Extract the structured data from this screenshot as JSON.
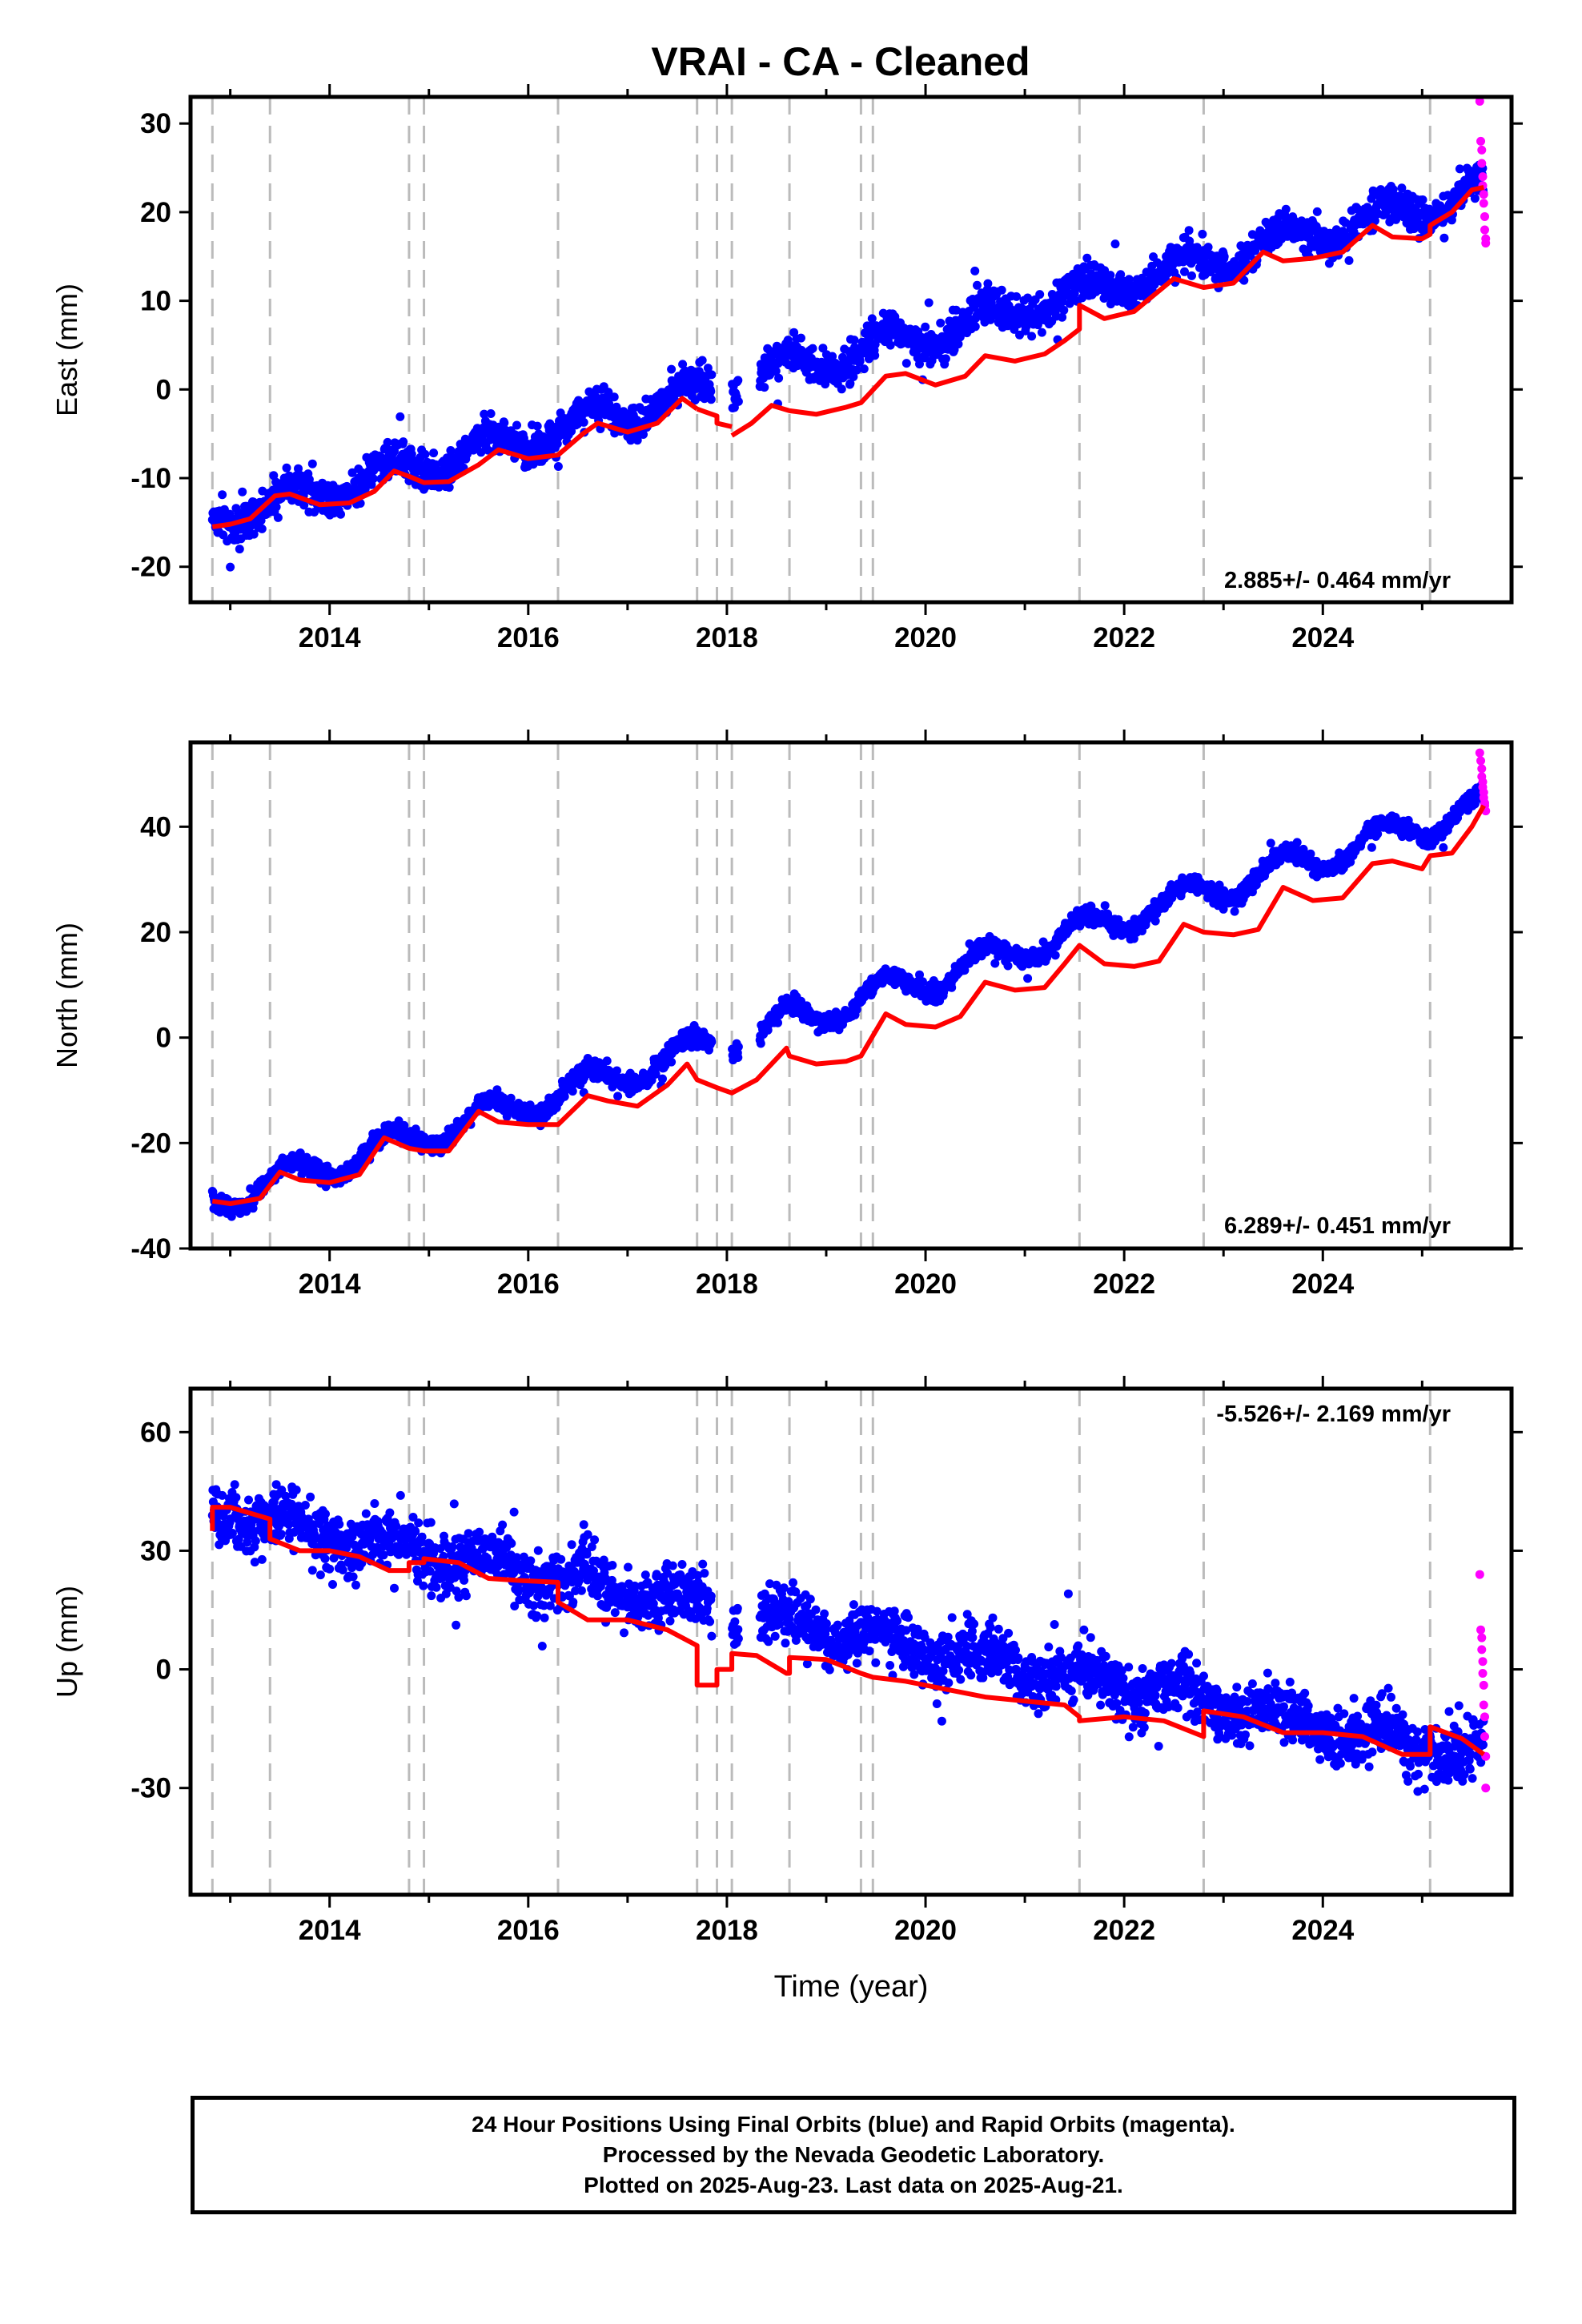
{
  "title": "VRAI  - CA - Cleaned",
  "colors": {
    "final": "#0000ff",
    "rapid": "#ff00ff",
    "model": "#ff0000",
    "event_lines": "#bbbbbb"
  },
  "xlabel": "Time (year)",
  "caption": [
    "24 Hour Positions Using Final Orbits (blue) and Rapid Orbits (magenta).",
    "Processed by the Nevada Geodetic Laboratory.",
    "Plotted on 2025-Aug-23. Last data on 2025-Aug-21."
  ],
  "chart_data": [
    {
      "type": "scatter",
      "panel": "east",
      "ylabel": "East (mm)",
      "rate_label": "2.885+/- 0.464 mm/yr",
      "rate_position": "bottom-right",
      "xlim": [
        2012.6,
        2025.9
      ],
      "ylim": [
        -24,
        33
      ],
      "yticks": [
        -20,
        -10,
        0,
        10,
        20,
        30
      ],
      "xticks": [
        2014,
        2016,
        2018,
        2020,
        2022,
        2024
      ],
      "event_lines": [
        2012.82,
        2013.4,
        2014.8,
        2014.95,
        2016.3,
        2017.7,
        2017.9,
        2018.05,
        2018.63,
        2019.35,
        2019.47,
        2021.55,
        2022.8,
        2025.08
      ],
      "trend": {
        "start": [
          2012.82,
          -14.5
        ],
        "end": [
          2025.62,
          22.5
        ],
        "amplitude": 1.6,
        "noise_sd": 2.2
      },
      "gaps": [
        [
          2017.85,
          2018.05
        ],
        [
          2018.12,
          2018.33
        ]
      ],
      "model_series": [
        {
          "x": [
            2012.82,
            2013.0,
            2013.2,
            2013.45,
            2013.6,
            2013.9,
            2014.2,
            2014.45,
            2014.65,
            2014.8,
            2014.95,
            2015.2,
            2015.5,
            2015.7,
            2016.0,
            2016.3,
            2016.55,
            2016.7,
            2017.0,
            2017.3,
            2017.55,
            2017.7
          ],
          "y": [
            -15.5,
            -15.2,
            -14.6,
            -12.0,
            -11.8,
            -13.0,
            -12.8,
            -11.5,
            -9.2,
            -9.8,
            -10.5,
            -10.4,
            -8.5,
            -6.8,
            -7.8,
            -7.4,
            -5.0,
            -3.8,
            -4.8,
            -3.8,
            -1.0,
            -2.2
          ]
        },
        {
          "x": [
            2017.7,
            2017.9,
            2017.9,
            2018.05
          ],
          "y": [
            -2.2,
            -3.0,
            -3.8,
            -4.2
          ]
        },
        {
          "x": [
            2018.05,
            2018.25,
            2018.45,
            2018.63,
            2018.9,
            2019.2,
            2019.35,
            2019.6,
            2019.8,
            2020.1,
            2020.4,
            2020.6,
            2020.9,
            2021.2,
            2021.4,
            2021.55,
            2021.55,
            2021.8,
            2022.1,
            2022.5,
            2022.8,
            2023.1,
            2023.4,
            2023.6,
            2023.9,
            2024.2,
            2024.5,
            2024.7,
            2025.0,
            2025.08,
            2025.08,
            2025.3,
            2025.5,
            2025.62
          ],
          "y": [
            -5.2,
            -3.8,
            -1.8,
            -2.4,
            -2.8,
            -2.0,
            -1.5,
            1.5,
            1.8,
            0.5,
            1.5,
            3.8,
            3.2,
            4.0,
            5.5,
            6.8,
            9.5,
            8.0,
            8.8,
            12.5,
            11.5,
            12.0,
            15.5,
            14.5,
            14.8,
            15.5,
            18.5,
            17.2,
            17.0,
            17.5,
            18.5,
            20.0,
            22.5,
            22.8
          ]
        }
      ],
      "rapid_points": {
        "x": [
          2025.58,
          2025.59,
          2025.6,
          2025.6,
          2025.61,
          2025.61,
          2025.62,
          2025.62,
          2025.63,
          2025.63,
          2025.64,
          2025.64
        ],
        "y": [
          32.5,
          28.0,
          27.0,
          25.5,
          24.0,
          23.0,
          22.0,
          21.0,
          19.5,
          18.0,
          17.0,
          16.5
        ]
      }
    },
    {
      "type": "scatter",
      "panel": "north",
      "ylabel": "North (mm)",
      "rate_label": "6.289+/- 0.451 mm/yr",
      "rate_position": "bottom-right",
      "xlim": [
        2012.6,
        2025.9
      ],
      "ylim": [
        -40,
        56
      ],
      "yticks": [
        -40,
        -20,
        0,
        20,
        40
      ],
      "xticks": [
        2014,
        2016,
        2018,
        2020,
        2022,
        2024
      ],
      "event_lines": [
        2012.82,
        2013.4,
        2014.8,
        2014.95,
        2016.3,
        2017.7,
        2017.9,
        2018.05,
        2018.63,
        2019.35,
        2019.47,
        2021.55,
        2022.8,
        2025.08
      ],
      "trend": {
        "start": [
          2012.82,
          -31.0
        ],
        "end": [
          2025.62,
          44.0
        ],
        "amplitude": 2.8,
        "noise_sd": 1.8
      },
      "gaps": [
        [
          2017.85,
          2018.05
        ],
        [
          2018.12,
          2018.33
        ]
      ],
      "model_series": [
        {
          "x": [
            2012.82,
            2013.0,
            2013.3,
            2013.5,
            2013.7,
            2014.0,
            2014.3,
            2014.55,
            2014.8,
            2014.95,
            2015.2,
            2015.5,
            2015.7,
            2016.0,
            2016.3,
            2016.6,
            2016.8,
            2017.1,
            2017.4,
            2017.6,
            2017.7,
            2017.9,
            2018.05,
            2018.3,
            2018.6,
            2018.63,
            2018.9,
            2019.2,
            2019.35,
            2019.6,
            2019.8,
            2020.1,
            2020.35,
            2020.6,
            2020.9,
            2021.2,
            2021.4,
            2021.55,
            2021.8,
            2022.1,
            2022.35,
            2022.6,
            2022.8,
            2023.1,
            2023.35,
            2023.6,
            2023.9,
            2024.2,
            2024.5,
            2024.7,
            2025.0,
            2025.08,
            2025.3,
            2025.5,
            2025.62
          ],
          "y": [
            -31.0,
            -31.5,
            -30.5,
            -25.5,
            -27.0,
            -27.5,
            -26.0,
            -19.0,
            -21.0,
            -21.5,
            -21.5,
            -14.0,
            -16.0,
            -16.5,
            -16.5,
            -11.0,
            -12.0,
            -13.0,
            -9.0,
            -5.0,
            -8.0,
            -9.5,
            -10.5,
            -8.0,
            -2.0,
            -3.5,
            -5.0,
            -4.5,
            -3.5,
            4.5,
            2.5,
            2.0,
            4.0,
            10.5,
            9.0,
            9.5,
            14.0,
            17.5,
            14.0,
            13.5,
            14.5,
            21.5,
            20.0,
            19.5,
            20.5,
            28.5,
            26.0,
            26.5,
            33.0,
            33.5,
            32.0,
            34.5,
            35.0,
            40.0,
            44.0
          ]
        }
      ],
      "rapid_points": {
        "x": [
          2025.58,
          2025.59,
          2025.6,
          2025.6,
          2025.61,
          2025.61,
          2025.62,
          2025.62,
          2025.63,
          2025.63,
          2025.64
        ],
        "y": [
          54.0,
          52.5,
          51.0,
          49.5,
          48.5,
          47.5,
          46.5,
          45.5,
          44.5,
          44.0,
          43.0
        ]
      }
    },
    {
      "type": "scatter",
      "panel": "up",
      "ylabel": "Up (mm)",
      "rate_label": "-5.526+/- 2.169 mm/yr",
      "rate_position": "top-right",
      "xlim": [
        2012.6,
        2025.9
      ],
      "ylim": [
        -57,
        71
      ],
      "yticks": [
        -30,
        0,
        30,
        60
      ],
      "xticks": [
        2014,
        2016,
        2018,
        2020,
        2022,
        2024
      ],
      "event_lines": [
        2012.82,
        2013.4,
        2014.8,
        2014.95,
        2016.3,
        2017.7,
        2017.9,
        2018.05,
        2018.63,
        2019.35,
        2019.47,
        2021.55,
        2022.8,
        2025.08
      ],
      "trend": {
        "start": [
          2012.82,
          40.0
        ],
        "end": [
          2025.62,
          -22.0
        ],
        "amplitude": 3.0,
        "noise_sd": 8.0
      },
      "gaps": [
        [
          2017.85,
          2018.05
        ],
        [
          2018.12,
          2018.33
        ]
      ],
      "model_series": [
        {
          "x": [
            2012.82,
            2012.82,
            2013.0,
            2013.4,
            2013.4,
            2013.7,
            2014.0,
            2014.3,
            2014.6,
            2014.8,
            2014.8,
            2014.95,
            2014.95,
            2015.3,
            2015.6,
            2015.9,
            2016.3,
            2016.3,
            2016.6,
            2017.0,
            2017.4,
            2017.7,
            2017.7,
            2017.9,
            2017.9,
            2018.05,
            2018.05,
            2018.3,
            2018.6,
            2018.63,
            2018.63,
            2019.0,
            2019.35,
            2019.47,
            2019.8,
            2020.2,
            2020.6,
            2021.0,
            2021.4,
            2021.55,
            2021.55,
            2022.0,
            2022.4,
            2022.8,
            2022.8,
            2023.2,
            2023.6,
            2024.0,
            2024.4,
            2024.8,
            2025.08,
            2025.08,
            2025.4,
            2025.62
          ],
          "y": [
            35.0,
            41.0,
            41.0,
            38.0,
            33.0,
            30.0,
            30.0,
            28.5,
            25.0,
            25.0,
            27.0,
            27.0,
            28.0,
            27.0,
            23.0,
            22.5,
            22.0,
            17.0,
            12.5,
            12.5,
            10.0,
            6.0,
            -4.0,
            -4.0,
            0.0,
            0.0,
            4.0,
            3.5,
            -1.0,
            -1.0,
            3.0,
            2.5,
            -1.0,
            -2.0,
            -3.0,
            -5.0,
            -7.0,
            -8.0,
            -9.0,
            -12.0,
            -13.0,
            -12.0,
            -13.0,
            -17.0,
            -10.5,
            -12.0,
            -16.0,
            -16.0,
            -17.0,
            -21.5,
            -21.5,
            -14.5,
            -17.5,
            -21.5
          ]
        }
      ],
      "rapid_points": {
        "x": [
          2025.58,
          2025.59,
          2025.6,
          2025.6,
          2025.61,
          2025.61,
          2025.62,
          2025.62,
          2025.63,
          2025.63,
          2025.64,
          2025.64
        ],
        "y": [
          24.0,
          10.0,
          8.0,
          5.0,
          2.0,
          -1.0,
          -4.0,
          -9.0,
          -12.0,
          -17.0,
          -22.0,
          -30.0
        ]
      }
    }
  ]
}
